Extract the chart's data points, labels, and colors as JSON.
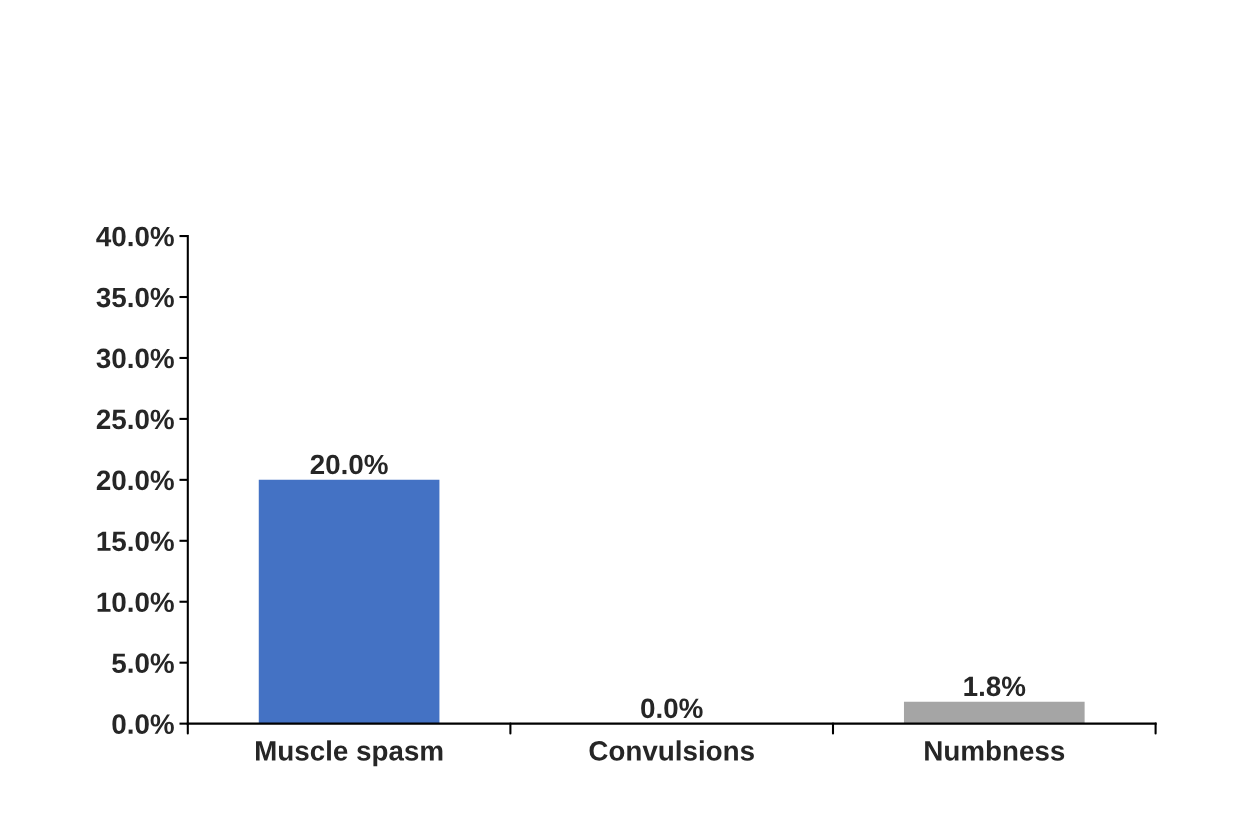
{
  "chart_data": {
    "type": "bar",
    "categories": [
      "Muscle spasm",
      "Convulsions",
      "Numbness"
    ],
    "values": [
      20.0,
      0.0,
      1.8
    ],
    "colors": [
      "#4472c4",
      "#c55a11",
      "#a5a5a5"
    ],
    "value_labels": [
      "20.0%",
      "0.0%",
      "1.8%"
    ],
    "ylim": [
      0,
      40
    ],
    "yticks": [
      {
        "value": 0,
        "label": "0.0%"
      },
      {
        "value": 5,
        "label": "5.0%"
      },
      {
        "value": 10,
        "label": "10.0%"
      },
      {
        "value": 15,
        "label": "15.0%"
      },
      {
        "value": 20,
        "label": "20.0%"
      },
      {
        "value": 25,
        "label": "25.0%"
      },
      {
        "value": 30,
        "label": "30.0%"
      },
      {
        "value": 35,
        "label": "35.0%"
      },
      {
        "value": 40,
        "label": "40.0%"
      }
    ],
    "grid": false
  }
}
